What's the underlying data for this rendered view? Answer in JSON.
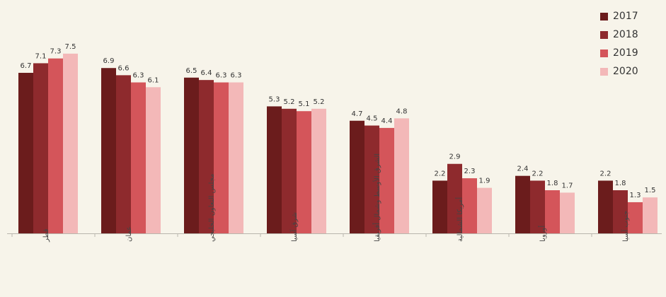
{
  "chart_data": {
    "type": "bar",
    "title": "",
    "xlabel": "",
    "ylabel": "",
    "ylim": [
      0,
      8.5
    ],
    "grid": false,
    "legend_position": "top-right",
    "categories": [
      "قطر",
      "عمان",
      "مجلس التعاون الخليجي",
      "شرق آسيا",
      "الشرق الأوسط وشمال أفريقيا",
      "أمريكا الشمالية",
      "أوروبا",
      "جنوب آسيا"
    ],
    "series": [
      {
        "name": "2017",
        "color": "#6b1c1c",
        "values": [
          6.7,
          6.9,
          6.5,
          5.3,
          4.7,
          2.2,
          2.4,
          2.2
        ]
      },
      {
        "name": "2018",
        "color": "#8e2a2d",
        "values": [
          7.1,
          6.6,
          6.4,
          5.2,
          4.5,
          2.9,
          2.2,
          1.8
        ]
      },
      {
        "name": "2019",
        "color": "#d4555a",
        "values": [
          7.3,
          6.3,
          6.3,
          5.1,
          4.4,
          2.3,
          1.8,
          1.3
        ]
      },
      {
        "name": "2020",
        "color": "#f3b8b8",
        "values": [
          7.5,
          6.1,
          6.3,
          5.2,
          4.8,
          1.9,
          1.7,
          1.5
        ]
      }
    ]
  }
}
